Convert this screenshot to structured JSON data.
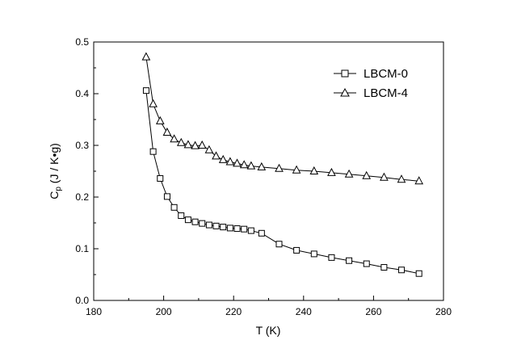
{
  "chart_data": {
    "type": "line",
    "title": "",
    "xlabel": "T (K)",
    "ylabel": {
      "main": "C",
      "sub": "p",
      "rest": " (J / K•g)"
    },
    "xlim": [
      180,
      280
    ],
    "ylim": [
      0.0,
      0.5
    ],
    "xticks": [
      "180",
      "200",
      "220",
      "240",
      "260",
      "280"
    ],
    "yticks": [
      "0.0",
      "0.1",
      "0.2",
      "0.3",
      "0.4",
      "0.5"
    ],
    "grid": false,
    "legend_position": "top-right",
    "series": [
      {
        "name": "LBCM-0",
        "marker": "square",
        "points": [
          [
            195,
            0.406
          ],
          [
            197,
            0.288
          ],
          [
            199,
            0.236
          ],
          [
            201,
            0.201
          ],
          [
            203,
            0.18
          ],
          [
            205,
            0.164
          ],
          [
            207,
            0.156
          ],
          [
            209,
            0.152
          ],
          [
            211,
            0.149
          ],
          [
            213,
            0.146
          ],
          [
            215,
            0.144
          ],
          [
            217,
            0.142
          ],
          [
            219,
            0.14
          ],
          [
            221,
            0.139
          ],
          [
            223,
            0.138
          ],
          [
            225,
            0.135
          ],
          [
            228,
            0.13
          ],
          [
            233,
            0.109
          ],
          [
            238,
            0.097
          ],
          [
            243,
            0.09
          ],
          [
            248,
            0.083
          ],
          [
            253,
            0.077
          ],
          [
            258,
            0.071
          ],
          [
            263,
            0.064
          ],
          [
            268,
            0.059
          ],
          [
            273,
            0.052
          ]
        ]
      },
      {
        "name": "LBCM-4",
        "marker": "triangle",
        "points": [
          [
            195,
            0.471
          ],
          [
            197,
            0.38
          ],
          [
            199,
            0.347
          ],
          [
            201,
            0.325
          ],
          [
            203,
            0.312
          ],
          [
            205,
            0.305
          ],
          [
            207,
            0.301
          ],
          [
            209,
            0.299
          ],
          [
            211,
            0.3
          ],
          [
            213,
            0.291
          ],
          [
            215,
            0.279
          ],
          [
            217,
            0.272
          ],
          [
            219,
            0.268
          ],
          [
            221,
            0.265
          ],
          [
            223,
            0.262
          ],
          [
            225,
            0.26
          ],
          [
            228,
            0.258
          ],
          [
            233,
            0.255
          ],
          [
            238,
            0.252
          ],
          [
            243,
            0.25
          ],
          [
            248,
            0.247
          ],
          [
            253,
            0.244
          ],
          [
            258,
            0.241
          ],
          [
            263,
            0.238
          ],
          [
            268,
            0.234
          ],
          [
            273,
            0.231
          ]
        ]
      }
    ]
  }
}
